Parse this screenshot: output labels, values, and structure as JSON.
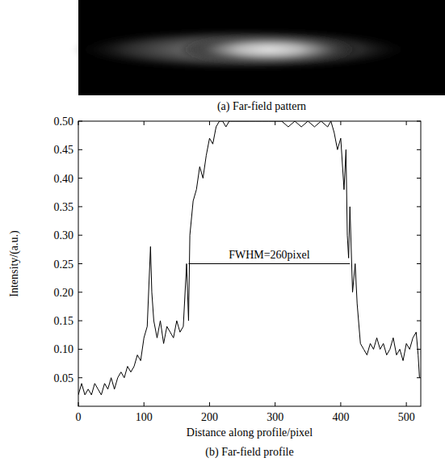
{
  "chart_data": {
    "type": "line",
    "image_caption": "(a) Far-field pattern",
    "title": "(b) Far-field profile",
    "x_label": "Distance along profile/pixel",
    "y_label": "Intensity/(a.u.)",
    "xlim": [
      0,
      522
    ],
    "ylim": [
      0,
      0.5
    ],
    "xticks": [
      0,
      100,
      200,
      300,
      400,
      500
    ],
    "yticks": [
      0.05,
      {
        "value": 0.1,
        "label": "0.10"
      },
      0.15,
      {
        "value": 0.2,
        "label": "0.20"
      },
      0.25,
      {
        "value": 0.3,
        "label": "0.30"
      },
      0.35,
      {
        "value": 0.4,
        "label": "0.40"
      },
      0.45,
      {
        "value": 0.5,
        "label": "0.50"
      }
    ],
    "grid": false,
    "x": [
      0,
      5,
      10,
      15,
      20,
      25,
      30,
      35,
      40,
      45,
      50,
      55,
      60,
      65,
      70,
      75,
      80,
      85,
      90,
      95,
      100,
      105,
      110,
      112,
      115,
      120,
      125,
      130,
      135,
      140,
      145,
      150,
      155,
      160,
      165,
      168,
      170,
      175,
      180,
      185,
      190,
      195,
      200,
      205,
      210,
      215,
      220,
      225,
      230,
      240,
      250,
      260,
      270,
      280,
      290,
      300,
      310,
      320,
      330,
      340,
      350,
      360,
      370,
      380,
      385,
      390,
      395,
      400,
      405,
      408,
      410,
      412,
      414,
      418,
      422,
      425,
      430,
      435,
      440,
      445,
      450,
      455,
      460,
      465,
      470,
      475,
      480,
      485,
      490,
      495,
      500,
      505,
      510,
      515,
      518,
      520
    ],
    "series": [
      {
        "name": "profile",
        "color": "#000000",
        "values": [
          0.02,
          0.04,
          0.02,
          0.03,
          0.02,
          0.04,
          0.03,
          0.02,
          0.04,
          0.03,
          0.05,
          0.03,
          0.05,
          0.06,
          0.05,
          0.07,
          0.06,
          0.07,
          0.09,
          0.08,
          0.12,
          0.14,
          0.28,
          0.2,
          0.15,
          0.12,
          0.15,
          0.11,
          0.14,
          0.13,
          0.12,
          0.15,
          0.13,
          0.14,
          0.25,
          0.15,
          0.3,
          0.36,
          0.38,
          0.42,
          0.4,
          0.44,
          0.47,
          0.46,
          0.49,
          0.5,
          0.5,
          0.49,
          0.5,
          0.5,
          0.5,
          0.5,
          0.5,
          0.5,
          0.5,
          0.5,
          0.5,
          0.49,
          0.5,
          0.49,
          0.5,
          0.49,
          0.5,
          0.49,
          0.5,
          0.48,
          0.45,
          0.47,
          0.38,
          0.45,
          0.3,
          0.26,
          0.35,
          0.2,
          0.25,
          0.18,
          0.11,
          0.1,
          0.09,
          0.11,
          0.1,
          0.12,
          0.1,
          0.11,
          0.09,
          0.1,
          0.12,
          0.09,
          0.1,
          0.08,
          0.11,
          0.1,
          0.12,
          0.13,
          0.09,
          0.05
        ]
      }
    ],
    "annotations": [
      {
        "text": "FWHM=260pixel",
        "x": [
          168,
          414
        ],
        "y": 0.25
      }
    ]
  }
}
